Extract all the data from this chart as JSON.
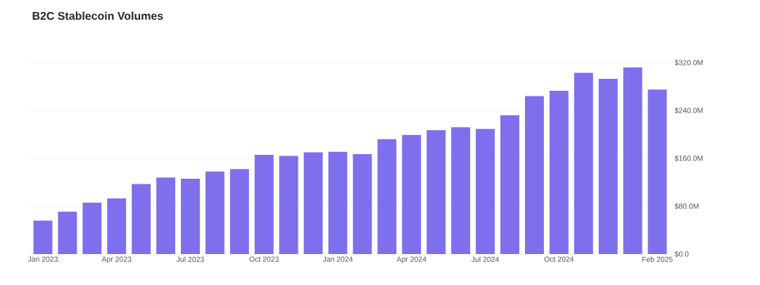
{
  "chart_data": {
    "type": "bar",
    "title": "B2C Stablecoin Volumes",
    "categories": [
      "Jan 2023",
      null,
      null,
      "Apr 2023",
      null,
      null,
      "Jul 2023",
      null,
      null,
      "Oct 2023",
      null,
      null,
      "Jan 2024",
      null,
      null,
      "Apr 2024",
      null,
      null,
      "Jul 2024",
      null,
      null,
      "Oct 2024",
      null,
      null,
      null,
      "Feb 2025"
    ],
    "values": [
      56,
      71,
      86,
      93,
      117,
      128,
      126,
      138,
      142,
      166,
      164,
      170,
      171,
      167,
      192,
      199,
      207,
      212,
      209,
      232,
      264,
      273,
      303,
      293,
      312,
      275
    ],
    "color": "#7f6fec",
    "ylim": [
      0,
      320
    ],
    "yticks": [
      {
        "value": 0,
        "label": "$0.0"
      },
      {
        "value": 80,
        "label": "$80.0M"
      },
      {
        "value": 160,
        "label": "$160.0M"
      },
      {
        "value": 240,
        "label": "$240.0M"
      },
      {
        "value": 320,
        "label": "$320.0M"
      }
    ],
    "grid": "y"
  }
}
